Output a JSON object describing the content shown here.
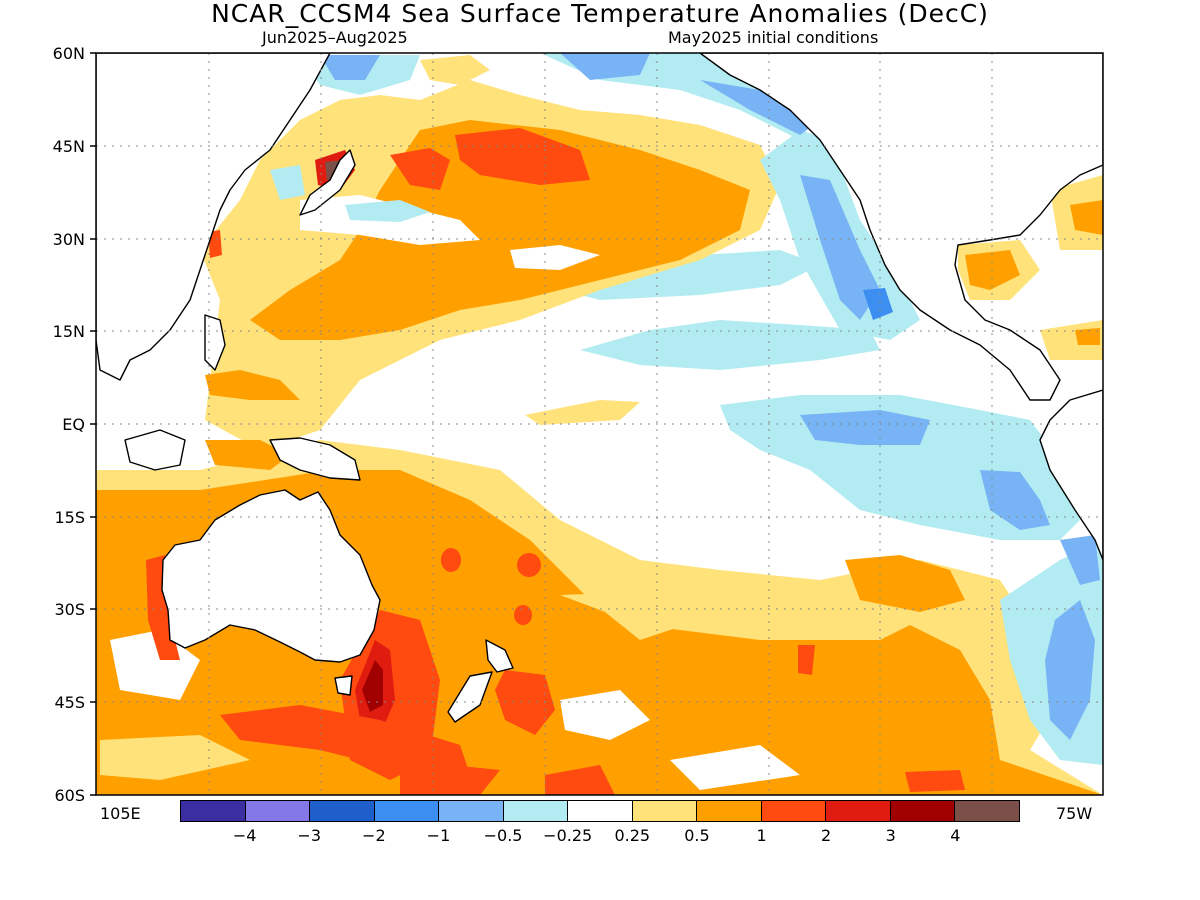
{
  "title": "NCAR_CCSM4 Sea Surface Temperature Anomalies (DecC)",
  "subtitle_left": "Jun2025–Aug2025",
  "subtitle_right": "May2025 initial conditions",
  "lat_labels": [
    "60N",
    "45N",
    "30N",
    "15N",
    "EQ",
    "15S",
    "30S",
    "45S",
    "60S"
  ],
  "lon_labels": {
    "left": "105E",
    "right": "75W"
  },
  "colorbar": {
    "colors": [
      "#3b2ea3",
      "#8478e8",
      "#1f5fcc",
      "#3c8ef0",
      "#78b4f5",
      "#b2ecf2",
      "#ffffff",
      "#ffe27a",
      "#ffa000",
      "#ff4a10",
      "#e01c10",
      "#a00000",
      "#7a5048"
    ],
    "labels": [
      "−4",
      "−3",
      "−2",
      "−1",
      "−0.5",
      "−0.25",
      "0.25",
      "0.5",
      "1",
      "2",
      "3",
      "4"
    ]
  },
  "colors": {
    "neutral": "#ffffff",
    "warm_light": "#ffe27a",
    "warm": "#ffa000",
    "warm_strong": "#ff4a10",
    "warm_very_strong": "#e01c10",
    "warm_extreme": "#7a5048",
    "cool_light": "#b2ecf2",
    "cool": "#78b4f5",
    "cool_strong": "#3c8ef0"
  }
}
